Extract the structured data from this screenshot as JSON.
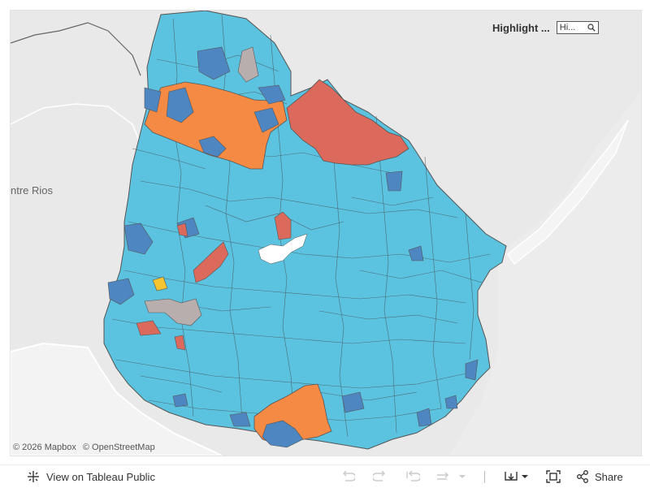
{
  "highlight": {
    "label": "Highlight ...",
    "input_value": "Hi...",
    "icon": "search-icon"
  },
  "map": {
    "basemap_label": "ntre Rios",
    "region_colors": {
      "default": "#5bc3df",
      "blue": "#4e86c2",
      "orange": "#f58a45",
      "red": "#dc6a5c",
      "gray": "#b8aeae",
      "yellow": "#f5c431",
      "land": "#e9e9e9",
      "water": "#f4f4f4"
    }
  },
  "attribution": {
    "copyright": "© 2026 Mapbox",
    "osm": "© OpenStreetMap"
  },
  "toolbar": {
    "view_label": "View on Tableau Public",
    "share_label": "Share"
  }
}
